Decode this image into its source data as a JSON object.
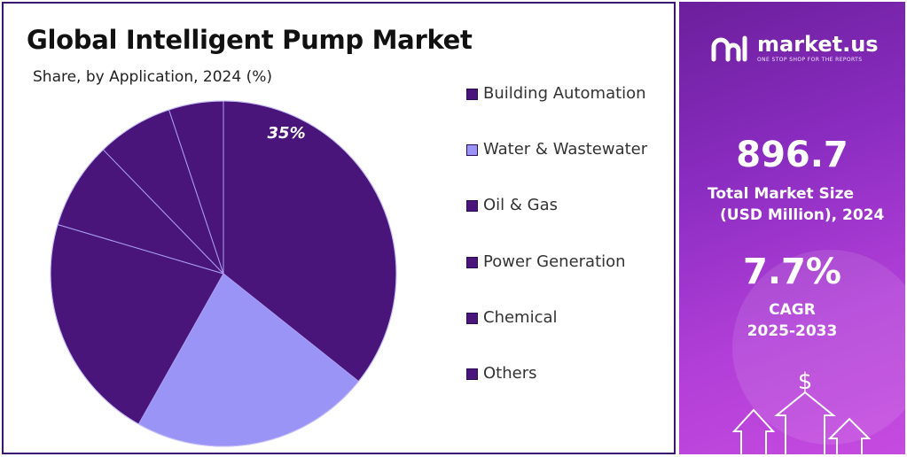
{
  "title": "Global Intelligent Pump Market",
  "subtitle": "Share, by Application, 2024 (%)",
  "chart_data": {
    "type": "pie",
    "title": "Global Intelligent Pump Market",
    "subtitle": "Share, by Application, 2024 (%)",
    "categories": [
      "Building Automation",
      "Water & Wastewater",
      "Oil & Gas",
      "Power Generation",
      "Chemical",
      "Others"
    ],
    "values": [
      35,
      22,
      21,
      8,
      7,
      5
    ],
    "data_labels": [
      "35%",
      "",
      "",
      "",
      "",
      ""
    ],
    "colors": [
      "#4a157a",
      "#9a94f7",
      "#4a157a",
      "#4a157a",
      "#4a157a",
      "#4a157a"
    ],
    "legend_position": "right"
  },
  "legend": [
    {
      "label": "Building Automation",
      "color": "#4a157a"
    },
    {
      "label": "Water & Wastewater",
      "color": "#9a94f7"
    },
    {
      "label": "Oil & Gas",
      "color": "#4a157a"
    },
    {
      "label": "Power Generation",
      "color": "#4a157a"
    },
    {
      "label": "Chemical",
      "color": "#4a157a"
    },
    {
      "label": "Others",
      "color": "#4a157a"
    }
  ],
  "brand": {
    "name": "market.us",
    "tagline": "ONE STOP SHOP FOR THE REPORTS"
  },
  "stats": {
    "market_size_value": "896.7",
    "market_size_label_1": "Total Market Size",
    "market_size_label_2": "(USD Million), 2024",
    "cagr_value": "7.7%",
    "cagr_label_1": "CAGR",
    "cagr_label_2": "2025-2033"
  },
  "colors": {
    "panel_dark": "#6b1f9c",
    "panel_light": "#c64be0",
    "slice_dark": "#4a157a",
    "slice_light": "#9a94f7"
  },
  "icons": [
    "market-us-logo-icon",
    "dollar-icon",
    "arrow-up-icon"
  ]
}
